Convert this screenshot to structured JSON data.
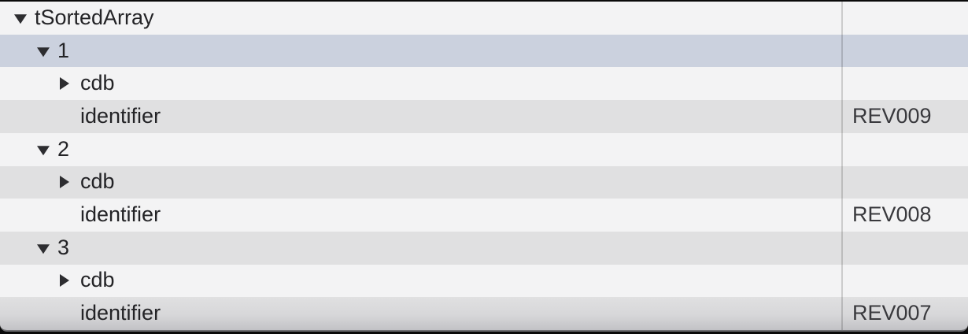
{
  "colors": {
    "row_light": "#f3f3f4",
    "row_alternate": "#e0e0e1",
    "selected_row": "#cbd1de",
    "text": "#232326",
    "divider": "#c5c5c7",
    "window_edge": "#0a0a0a"
  },
  "tree": {
    "rows": [
      {
        "label": "tSortedArray",
        "level": 0,
        "disclosure": "expanded",
        "value": "",
        "selected": false
      },
      {
        "label": "1",
        "level": 1,
        "disclosure": "expanded",
        "value": "",
        "selected": true
      },
      {
        "label": "cdb",
        "level": 2,
        "disclosure": "collapsed",
        "value": "",
        "selected": false
      },
      {
        "label": "identifier",
        "level": 2,
        "disclosure": "none",
        "value": "REV009",
        "selected": false
      },
      {
        "label": "2",
        "level": 1,
        "disclosure": "expanded",
        "value": "",
        "selected": false
      },
      {
        "label": "cdb",
        "level": 2,
        "disclosure": "collapsed",
        "value": "",
        "selected": false
      },
      {
        "label": "identifier",
        "level": 2,
        "disclosure": "none",
        "value": "REV008",
        "selected": false
      },
      {
        "label": "3",
        "level": 1,
        "disclosure": "expanded",
        "value": "",
        "selected": false
      },
      {
        "label": "cdb",
        "level": 2,
        "disclosure": "collapsed",
        "value": "",
        "selected": false
      },
      {
        "label": "identifier",
        "level": 2,
        "disclosure": "none",
        "value": "REV007",
        "selected": false
      }
    ]
  }
}
